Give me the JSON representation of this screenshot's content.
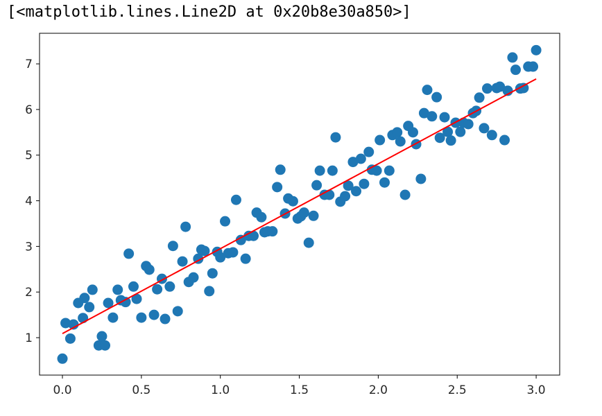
{
  "output_text": "[<matplotlib.lines.Line2D at 0x20b8e30a850>]",
  "chart_data": {
    "type": "scatter",
    "xlim": [
      -0.145,
      3.149
    ],
    "ylim": [
      0.18,
      7.67
    ],
    "xticks": [
      {
        "value": 0,
        "label": "0.0"
      },
      0.5,
      {
        "value": 1,
        "label": "1.0"
      },
      1.5,
      {
        "value": 2,
        "label": "2.0"
      },
      2.5,
      {
        "value": 3,
        "label": "3.0"
      }
    ],
    "yticks": [
      1,
      2,
      3,
      4,
      5,
      6,
      7
    ],
    "grid": false,
    "series": [
      {
        "type": "scatter",
        "color": "#1f77b4",
        "x": [
          0.0,
          0.02,
          0.05,
          0.07,
          0.1,
          0.13,
          0.14,
          0.17,
          0.19,
          0.23,
          0.25,
          0.27,
          0.29,
          0.32,
          0.35,
          0.37,
          0.4,
          0.42,
          0.45,
          0.47,
          0.5,
          0.53,
          0.55,
          0.58,
          0.6,
          0.63,
          0.65,
          0.68,
          0.7,
          0.73,
          0.76,
          0.78,
          0.8,
          0.83,
          0.86,
          0.88,
          0.9,
          0.93,
          0.95,
          0.98,
          1.0,
          1.03,
          1.05,
          1.08,
          1.1,
          1.13,
          1.16,
          1.18,
          1.21,
          1.23,
          1.26,
          1.28,
          1.3,
          1.33,
          1.36,
          1.38,
          1.41,
          1.43,
          1.46,
          1.49,
          1.51,
          1.53,
          1.56,
          1.59,
          1.61,
          1.63,
          1.66,
          1.69,
          1.71,
          1.73,
          1.76,
          1.79,
          1.81,
          1.84,
          1.86,
          1.89,
          1.91,
          1.94,
          1.96,
          1.99,
          2.01,
          2.04,
          2.07,
          2.09,
          2.12,
          2.14,
          2.17,
          2.19,
          2.22,
          2.24,
          2.27,
          2.29,
          2.31,
          2.34,
          2.37,
          2.39,
          2.42,
          2.44,
          2.46,
          2.49,
          2.52,
          2.54,
          2.57,
          2.6,
          2.62,
          2.64,
          2.67,
          2.69,
          2.72,
          2.75,
          2.77,
          2.8,
          2.82,
          2.85,
          2.87,
          2.9,
          2.92,
          2.95,
          2.98,
          3.0
        ],
        "values": [
          0.54,
          1.32,
          0.98,
          1.29,
          1.76,
          1.43,
          1.87,
          1.67,
          2.05,
          0.83,
          1.03,
          0.83,
          1.76,
          1.44,
          2.05,
          1.82,
          1.78,
          2.84,
          2.12,
          1.85,
          1.44,
          2.57,
          2.49,
          1.5,
          2.06,
          2.29,
          1.41,
          2.12,
          3.01,
          1.58,
          2.67,
          3.43,
          2.22,
          2.32,
          2.73,
          2.93,
          2.9,
          2.02,
          2.41,
          2.88,
          2.76,
          3.55,
          2.85,
          2.87,
          4.02,
          3.14,
          2.73,
          3.23,
          3.23,
          3.74,
          3.64,
          3.31,
          3.33,
          3.33,
          4.3,
          4.68,
          3.72,
          4.05,
          3.99,
          3.61,
          3.66,
          3.74,
          3.08,
          3.67,
          4.34,
          4.66,
          4.13,
          4.13,
          4.66,
          5.39,
          3.98,
          4.1,
          4.33,
          4.85,
          4.21,
          4.92,
          4.37,
          5.07,
          4.68,
          4.66,
          5.33,
          4.4,
          4.66,
          5.44,
          5.5,
          5.3,
          4.13,
          5.64,
          5.5,
          5.24,
          4.48,
          5.92,
          6.43,
          5.85,
          6.27,
          5.38,
          5.83,
          5.51,
          5.32,
          5.71,
          5.51,
          5.71,
          5.68,
          5.92,
          5.97,
          6.26,
          5.59,
          6.46,
          5.44,
          6.47,
          6.5,
          5.33,
          6.41,
          7.14,
          6.87,
          6.46,
          6.47,
          6.94,
          6.94,
          7.3
        ]
      },
      {
        "type": "line",
        "color": "#ff0000",
        "x": [
          0,
          3
        ],
        "values": [
          1.09,
          6.67
        ]
      }
    ]
  }
}
